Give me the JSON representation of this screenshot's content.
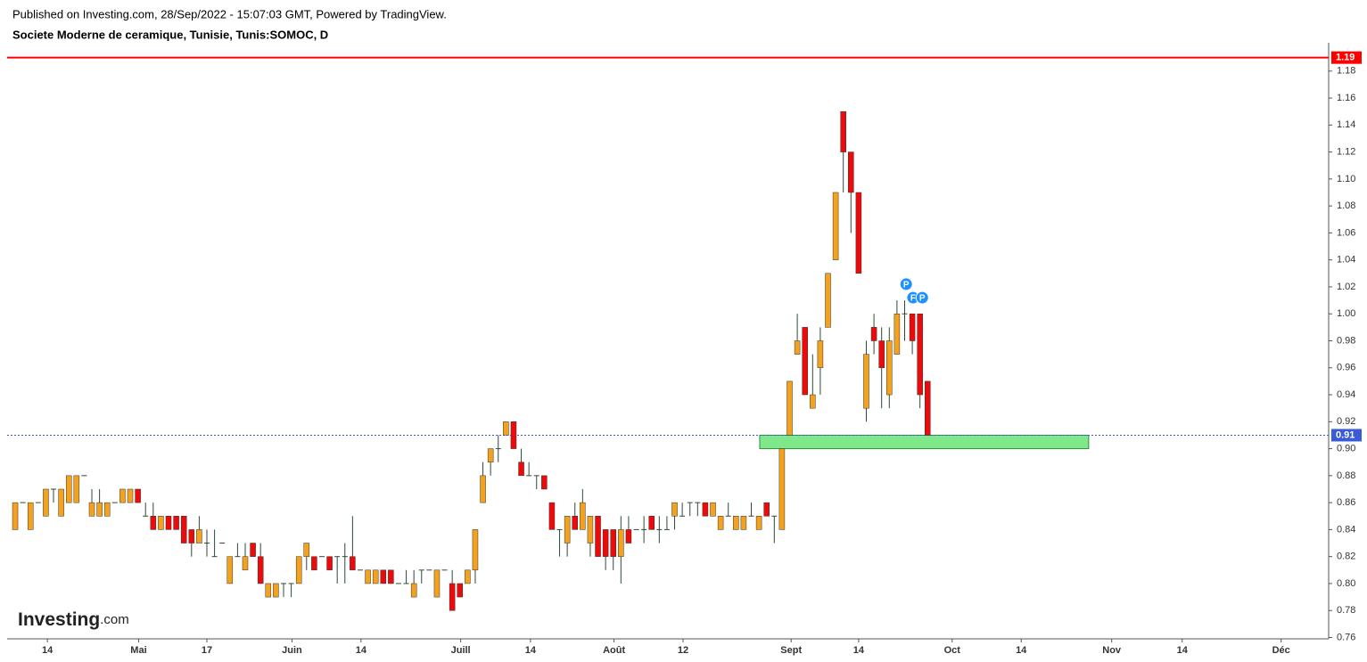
{
  "chart_data": {
    "type": "candlestick",
    "subtitle": "Published on Investing.com, 28/Sep/2022 - 15:07:03 GMT, Powered by TradingView.",
    "title": "Societe Moderne de ceramique, Tunisie, Tunis:SOMOC, D",
    "watermark": {
      "brand": "Investing",
      "suffix": ".com"
    },
    "up_color": "#f4a21d",
    "down_color": "#ee0a0a",
    "wick_color": "#2e4a38",
    "open": [
      0.84,
      0.86,
      0.84,
      0.86,
      0.85,
      0.87,
      0.85,
      0.86,
      0.86,
      0.88,
      0.85,
      0.85,
      0.85,
      0.86,
      0.86,
      0.86,
      0.87,
      0.85,
      0.85,
      0.84,
      0.85,
      0.85,
      0.85,
      0.84,
      0.83,
      0.83,
      0.82,
      0.83,
      0.8,
      0.82,
      0.81,
      0.83,
      0.82,
      0.79,
      0.79,
      0.8,
      0.8,
      0.8,
      0.82,
      0.82,
      0.82,
      0.82,
      0.82,
      0.82,
      0.82,
      0.81,
      0.8,
      0.8,
      0.81,
      0.81,
      0.8,
      0.8,
      0.79,
      0.81,
      0.81,
      0.79,
      0.81,
      0.8,
      0.8,
      0.8,
      0.81,
      0.86,
      0.89,
      0.9,
      0.91,
      0.92,
      0.89,
      0.88,
      0.88,
      0.88,
      0.86,
      0.84,
      0.83,
      0.85,
      0.84,
      0.83,
      0.85,
      0.84,
      0.84,
      0.82,
      0.84,
      0.84,
      0.84,
      0.85,
      0.84,
      0.84,
      0.85,
      0.85,
      0.86,
      0.86,
      0.86,
      0.85,
      0.84,
      0.85,
      0.84,
      0.84,
      0.85,
      0.84,
      0.86,
      0.85,
      0.84,
      0.91,
      0.97,
      0.99,
      0.93,
      0.96,
      0.99,
      1.04,
      1.15,
      1.12,
      1.09,
      0.93,
      0.99,
      0.98,
      0.94,
      0.97,
      1.0,
      1.0,
      1.0,
      0.95
    ],
    "high": [
      0.86,
      0.86,
      0.86,
      0.86,
      0.87,
      0.87,
      0.87,
      0.88,
      0.88,
      0.88,
      0.87,
      0.87,
      0.86,
      0.86,
      0.87,
      0.87,
      0.87,
      0.86,
      0.86,
      0.85,
      0.85,
      0.85,
      0.85,
      0.84,
      0.85,
      0.84,
      0.84,
      0.83,
      0.82,
      0.83,
      0.83,
      0.83,
      0.83,
      0.8,
      0.8,
      0.8,
      0.8,
      0.82,
      0.83,
      0.82,
      0.82,
      0.82,
      0.82,
      0.83,
      0.85,
      0.81,
      0.81,
      0.81,
      0.81,
      0.81,
      0.8,
      0.81,
      0.81,
      0.81,
      0.81,
      0.81,
      0.81,
      0.81,
      0.8,
      0.81,
      0.84,
      0.89,
      0.9,
      0.91,
      0.92,
      0.92,
      0.9,
      0.89,
      0.88,
      0.88,
      0.86,
      0.84,
      0.85,
      0.86,
      0.87,
      0.85,
      0.85,
      0.84,
      0.84,
      0.85,
      0.85,
      0.84,
      0.85,
      0.85,
      0.85,
      0.85,
      0.86,
      0.86,
      0.86,
      0.86,
      0.86,
      0.86,
      0.85,
      0.86,
      0.85,
      0.85,
      0.86,
      0.85,
      0.86,
      0.85,
      0.9,
      0.95,
      1.0,
      0.99,
      0.97,
      0.99,
      1.03,
      1.09,
      1.15,
      1.12,
      1.09,
      0.98,
      1.0,
      0.99,
      0.99,
      1.01,
      1.01,
      1.0,
      1.0,
      0.95
    ],
    "low": [
      0.84,
      0.86,
      0.84,
      0.86,
      0.85,
      0.86,
      0.85,
      0.86,
      0.86,
      0.88,
      0.85,
      0.85,
      0.85,
      0.86,
      0.86,
      0.86,
      0.86,
      0.85,
      0.84,
      0.84,
      0.84,
      0.84,
      0.83,
      0.82,
      0.83,
      0.82,
      0.82,
      0.83,
      0.8,
      0.82,
      0.81,
      0.82,
      0.8,
      0.79,
      0.79,
      0.79,
      0.79,
      0.8,
      0.81,
      0.81,
      0.82,
      0.81,
      0.8,
      0.8,
      0.81,
      0.81,
      0.8,
      0.8,
      0.8,
      0.8,
      0.8,
      0.8,
      0.79,
      0.8,
      0.81,
      0.79,
      0.81,
      0.78,
      0.79,
      0.8,
      0.8,
      0.86,
      0.88,
      0.89,
      0.91,
      0.9,
      0.88,
      0.88,
      0.87,
      0.87,
      0.84,
      0.82,
      0.82,
      0.84,
      0.84,
      0.82,
      0.82,
      0.81,
      0.81,
      0.8,
      0.83,
      0.84,
      0.83,
      0.84,
      0.83,
      0.84,
      0.84,
      0.85,
      0.85,
      0.85,
      0.85,
      0.85,
      0.84,
      0.85,
      0.84,
      0.84,
      0.85,
      0.84,
      0.85,
      0.83,
      0.84,
      0.91,
      0.97,
      0.94,
      0.93,
      0.94,
      0.99,
      1.04,
      1.09,
      1.06,
      1.03,
      0.92,
      0.97,
      0.93,
      0.93,
      0.97,
      0.98,
      0.97,
      0.93,
      0.91
    ],
    "close": [
      0.86,
      0.86,
      0.86,
      0.86,
      0.87,
      0.87,
      0.87,
      0.88,
      0.88,
      0.88,
      0.86,
      0.86,
      0.86,
      0.86,
      0.87,
      0.87,
      0.86,
      0.85,
      0.84,
      0.85,
      0.84,
      0.84,
      0.83,
      0.83,
      0.84,
      0.83,
      0.82,
      0.83,
      0.82,
      0.82,
      0.82,
      0.82,
      0.8,
      0.8,
      0.8,
      0.8,
      0.8,
      0.82,
      0.83,
      0.81,
      0.82,
      0.81,
      0.82,
      0.82,
      0.81,
      0.81,
      0.81,
      0.81,
      0.8,
      0.8,
      0.8,
      0.8,
      0.8,
      0.81,
      0.81,
      0.81,
      0.81,
      0.78,
      0.79,
      0.81,
      0.84,
      0.88,
      0.9,
      0.9,
      0.92,
      0.9,
      0.88,
      0.88,
      0.88,
      0.87,
      0.84,
      0.84,
      0.85,
      0.84,
      0.86,
      0.85,
      0.82,
      0.82,
      0.82,
      0.84,
      0.83,
      0.84,
      0.84,
      0.84,
      0.84,
      0.84,
      0.86,
      0.85,
      0.86,
      0.86,
      0.85,
      0.86,
      0.85,
      0.85,
      0.85,
      0.85,
      0.85,
      0.85,
      0.85,
      0.85,
      0.9,
      0.95,
      0.98,
      0.94,
      0.94,
      0.98,
      1.03,
      1.09,
      1.12,
      1.09,
      1.03,
      0.97,
      0.98,
      0.96,
      0.98,
      1.0,
      1.0,
      0.98,
      0.94,
      0.91
    ],
    "xlim": [
      -1.05,
      171.3
    ],
    "xticks": [
      {
        "value": 4.2,
        "label": "14"
      },
      {
        "value": 16.1,
        "label": "Mai"
      },
      {
        "value": 25.0,
        "label": "17"
      },
      {
        "value": 36.1,
        "label": "Juin"
      },
      {
        "value": 45.1,
        "label": "14"
      },
      {
        "value": 58.1,
        "label": "Juill"
      },
      {
        "value": 67.2,
        "label": "14"
      },
      {
        "value": 78.1,
        "label": "Août"
      },
      {
        "value": 87.1,
        "label": "12"
      },
      {
        "value": 101.2,
        "label": "Sept"
      },
      {
        "value": 110.0,
        "label": "14"
      },
      {
        "value": 122.2,
        "label": "Oct"
      },
      {
        "value": 131.2,
        "label": "14"
      },
      {
        "value": 143.0,
        "label": "Nov"
      },
      {
        "value": 152.2,
        "label": "14"
      },
      {
        "value": 165.1,
        "label": "Déc"
      }
    ],
    "ylim": [
      0.759,
      1.201
    ],
    "yticks": [
      0.76,
      0.78,
      {
        "value": 0.8,
        "label": "0.80"
      },
      0.82,
      0.84,
      0.86,
      0.88,
      {
        "value": 0.9,
        "label": "0.90"
      },
      0.92,
      0.94,
      0.96,
      0.98,
      {
        "value": 1,
        "label": "1.00"
      },
      1.02,
      1.04,
      1.06,
      1.08,
      {
        "value": 1.1,
        "label": "1.10"
      },
      1.12,
      1.14,
      1.16,
      1.18
    ],
    "hlines": [
      {
        "value": 1.19,
        "color": "#ff0000",
        "style": "solid"
      },
      {
        "value": 0.91,
        "color": "#3a5bd6",
        "style": "dotted"
      }
    ],
    "zone": {
      "x": [
        97.1,
        140.0
      ],
      "y": [
        0.9,
        0.91
      ],
      "color": "#7fe88a"
    },
    "events": [
      {
        "x": 116.2,
        "y": 1.022,
        "label": "P"
      },
      {
        "x": 117.1,
        "y": 1.012,
        "label": "F"
      },
      {
        "x": 118.3,
        "y": 1.012,
        "label": "P"
      }
    ]
  }
}
